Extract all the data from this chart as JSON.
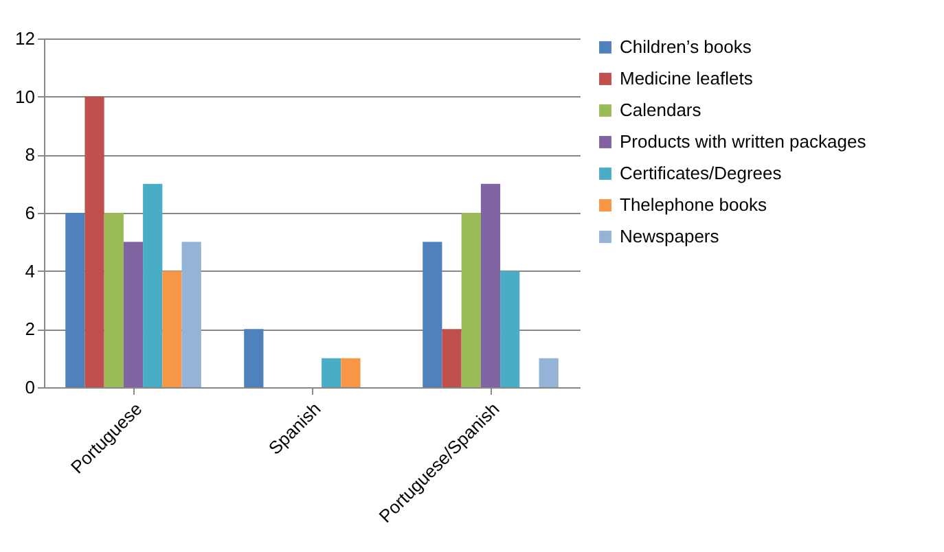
{
  "chart_data": {
    "type": "bar",
    "categories": [
      "Portuguese",
      "Spanish",
      "Portuguese/Spanish"
    ],
    "series": [
      {
        "name": "Children’s books",
        "color": "#4f81bd",
        "values": [
          6,
          2,
          5
        ]
      },
      {
        "name": "Medicine leaflets",
        "color": "#c0504d",
        "values": [
          10,
          0,
          2
        ]
      },
      {
        "name": "Calendars",
        "color": "#9bbb59",
        "values": [
          6,
          0,
          6
        ]
      },
      {
        "name": "Products with written packages",
        "color": "#8064a2",
        "values": [
          5,
          0,
          7
        ]
      },
      {
        "name": "Certificates/Degrees",
        "color": "#4bacc6",
        "values": [
          7,
          1,
          4
        ]
      },
      {
        "name": "Thelephone books",
        "color": "#f79646",
        "values": [
          4,
          1,
          0
        ]
      },
      {
        "name": "Newspapers",
        "color": "#95b3d7",
        "values": [
          5,
          0,
          1
        ]
      }
    ],
    "ylim": [
      0,
      12
    ],
    "yticks": [
      0,
      2,
      4,
      6,
      8,
      10,
      12
    ],
    "grid": "y",
    "legend": "right"
  }
}
